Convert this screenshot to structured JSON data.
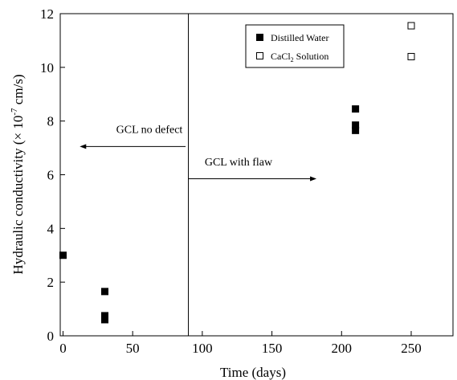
{
  "chart_data": {
    "type": "scatter",
    "title": "",
    "xlabel": "Time (days)",
    "ylabel_main": "Hydraulic conductivity (× 10",
    "ylabel_exp": "-7",
    "ylabel_unit": " cm/s)",
    "xlim": [
      -2,
      280
    ],
    "ylim": [
      0,
      12
    ],
    "x_ticks": [
      0,
      50,
      100,
      150,
      200,
      250
    ],
    "y_ticks": [
      0,
      2,
      4,
      6,
      8,
      10,
      12
    ],
    "grid": false,
    "legend_position": "top-center-right",
    "series": [
      {
        "name": "Distilled Water",
        "marker": "filled-square",
        "color": "#000000",
        "points": [
          {
            "x": 0,
            "y": 3.0
          },
          {
            "x": 30,
            "y": 1.65
          },
          {
            "x": 30,
            "y": 0.75
          },
          {
            "x": 30,
            "y": 0.6
          },
          {
            "x": 210,
            "y": 8.45
          },
          {
            "x": 210,
            "y": 7.85
          },
          {
            "x": 210,
            "y": 7.65
          }
        ]
      },
      {
        "name_main": "CaCl",
        "name_sub": "2",
        "name_rest": " Solution",
        "marker": "open-square",
        "color": "#000000",
        "points": [
          {
            "x": 250,
            "y": 11.55
          },
          {
            "x": 250,
            "y": 10.4
          }
        ]
      }
    ],
    "divider": {
      "x": 90
    },
    "annotations": [
      {
        "text": "GCL no defect",
        "x": 88,
        "y": 7.05,
        "arrow_to_x": 12,
        "text_x": 62,
        "text_y": 7.55
      },
      {
        "text": "GCL with flaw",
        "x": 90,
        "y": 5.85,
        "arrow_to_x": 182,
        "text_x": 126,
        "text_y": 6.35
      }
    ]
  }
}
